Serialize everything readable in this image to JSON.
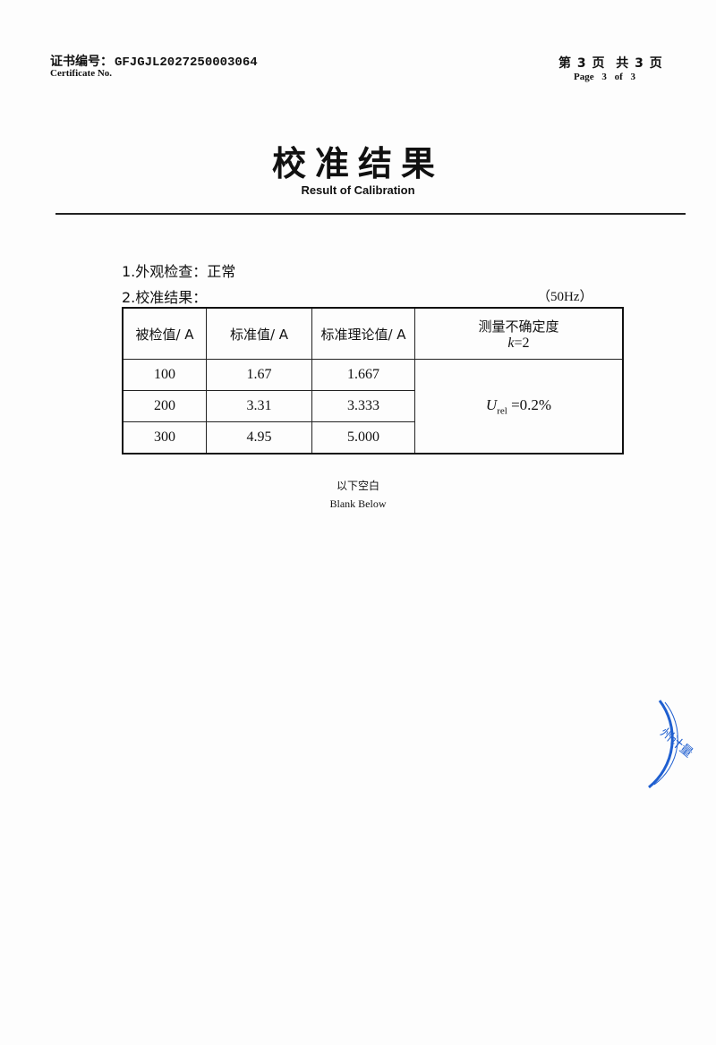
{
  "header": {
    "cert_label": "证书编号：",
    "cert_no": "GFJGJL2027250003064",
    "cert_label_en": "Certificate No.",
    "page_cn": "第 3 页  共 3 页",
    "page_en": "Page 3 of 3"
  },
  "title": "校准结果",
  "subtitle": "Result of Calibration",
  "items": {
    "appearance": "1.外观检查：正常",
    "result": "2.校准结果：",
    "frequency": "（50Hz）"
  },
  "table": {
    "headers": [
      "被检值/ A",
      "标准值/ A",
      "标准理论值/ A",
      "测量不确定度"
    ],
    "k": "k=2",
    "rows": [
      [
        "100",
        "1.67",
        "1.667"
      ],
      [
        "200",
        "3.31",
        "3.333"
      ],
      [
        "300",
        "4.95",
        "5.000"
      ]
    ],
    "uncertainty_symbol": "U",
    "uncertainty_sub": "rel",
    "uncertainty_value": "=0.2%"
  },
  "blank_cn": "以下空白",
  "blank_en": "Blank Below",
  "stamp": {
    "text": "州计量",
    "color": "#1f5fd0"
  }
}
